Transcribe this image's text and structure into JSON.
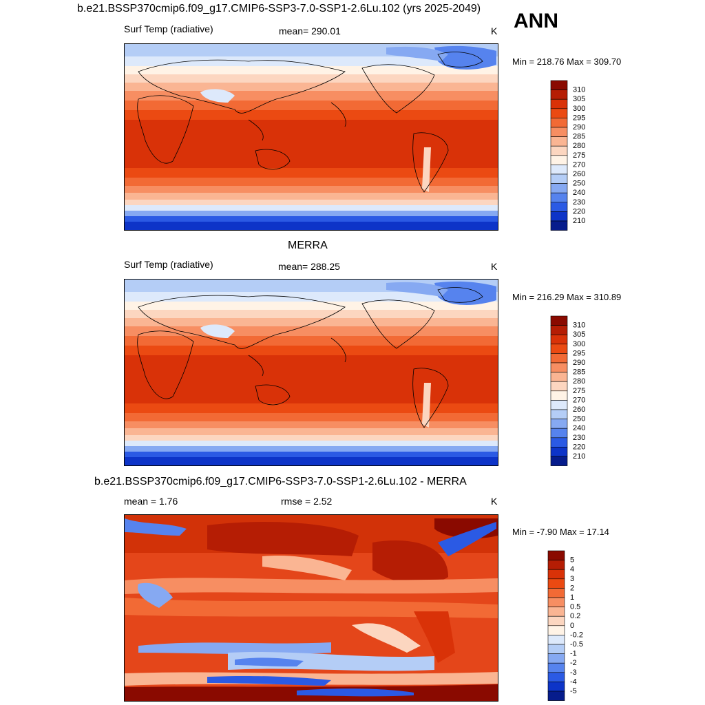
{
  "header": {
    "title": "b.e21.BSSP370cmip6.f09_g17.CMIP6-SSP3-7.0-SSP1-2.6Lu.102 (yrs 2025-2049)",
    "season": "ANN"
  },
  "panels": [
    {
      "title": "",
      "left_label": "Surf Temp (radiative)",
      "center_label": "mean= 290.01",
      "units": "K",
      "minmax": "Min = 218.76 Max = 309.70"
    },
    {
      "title": "MERRA",
      "left_label": "Surf Temp (radiative)",
      "center_label": "mean= 288.25",
      "units": "K",
      "minmax": "Min = 216.29 Max = 310.89"
    },
    {
      "title": "b.e21.BSSP370cmip6.f09_g17.CMIP6-SSP3-7.0-SSP1-2.6Lu.102 - MERRA",
      "left_label": "mean =   1.76",
      "center_label": "rmse =   2.52",
      "units": "K",
      "minmax": "Min =  -7.90 Max =  17.14"
    }
  ],
  "chart_data": [
    {
      "type": "heatmap",
      "title": "Surf Temp (radiative)",
      "variable": "Surface temperature (radiative)",
      "units": "K",
      "mean": 290.01,
      "min": 218.76,
      "max": 309.7,
      "colorbar_levels": [
        "310",
        "305",
        "300",
        "295",
        "290",
        "285",
        "280",
        "275",
        "270",
        "260",
        "250",
        "240",
        "230",
        "220",
        "210"
      ],
      "colorbar_colors": [
        "#8a0a00",
        "#b51d04",
        "#d93208",
        "#eb4a12",
        "#f26a35",
        "#f78e62",
        "#fab593",
        "#fcd6c0",
        "#fff3e6",
        "#dde9fb",
        "#b4cdf6",
        "#86a9f2",
        "#5683ee",
        "#2b5ae4",
        "#0d34c8",
        "#061c8c"
      ]
    },
    {
      "type": "heatmap",
      "title": "MERRA",
      "variable": "Surface temperature (radiative)",
      "units": "K",
      "mean": 288.25,
      "min": 216.29,
      "max": 310.89,
      "colorbar_levels": [
        "310",
        "305",
        "300",
        "295",
        "290",
        "285",
        "280",
        "275",
        "270",
        "260",
        "250",
        "240",
        "230",
        "220",
        "210"
      ],
      "colorbar_colors": [
        "#8a0a00",
        "#b51d04",
        "#d93208",
        "#eb4a12",
        "#f26a35",
        "#f78e62",
        "#fab593",
        "#fcd6c0",
        "#fff3e6",
        "#dde9fb",
        "#b4cdf6",
        "#86a9f2",
        "#5683ee",
        "#2b5ae4",
        "#0d34c8",
        "#061c8c"
      ]
    },
    {
      "type": "heatmap",
      "title": "b.e21.BSSP370cmip6.f09_g17.CMIP6-SSP3-7.0-SSP1-2.6Lu.102 - MERRA",
      "variable": "Surface temperature difference",
      "units": "K",
      "mean": 1.76,
      "rmse": 2.52,
      "min": -7.9,
      "max": 17.14,
      "colorbar_levels": [
        "5",
        "4",
        "3",
        "2",
        "1",
        "0.5",
        "0.2",
        "0",
        "-0.2",
        "-0.5",
        "-1",
        "-2",
        "-3",
        "-4",
        "-5"
      ],
      "colorbar_colors": [
        "#8a0a00",
        "#b51d04",
        "#d93208",
        "#eb4a12",
        "#f26a35",
        "#f78e62",
        "#fab593",
        "#fcd6c0",
        "#fff3e6",
        "#dde9fb",
        "#b4cdf6",
        "#86a9f2",
        "#5683ee",
        "#2b5ae4",
        "#0d34c8",
        "#061c8c"
      ]
    }
  ]
}
